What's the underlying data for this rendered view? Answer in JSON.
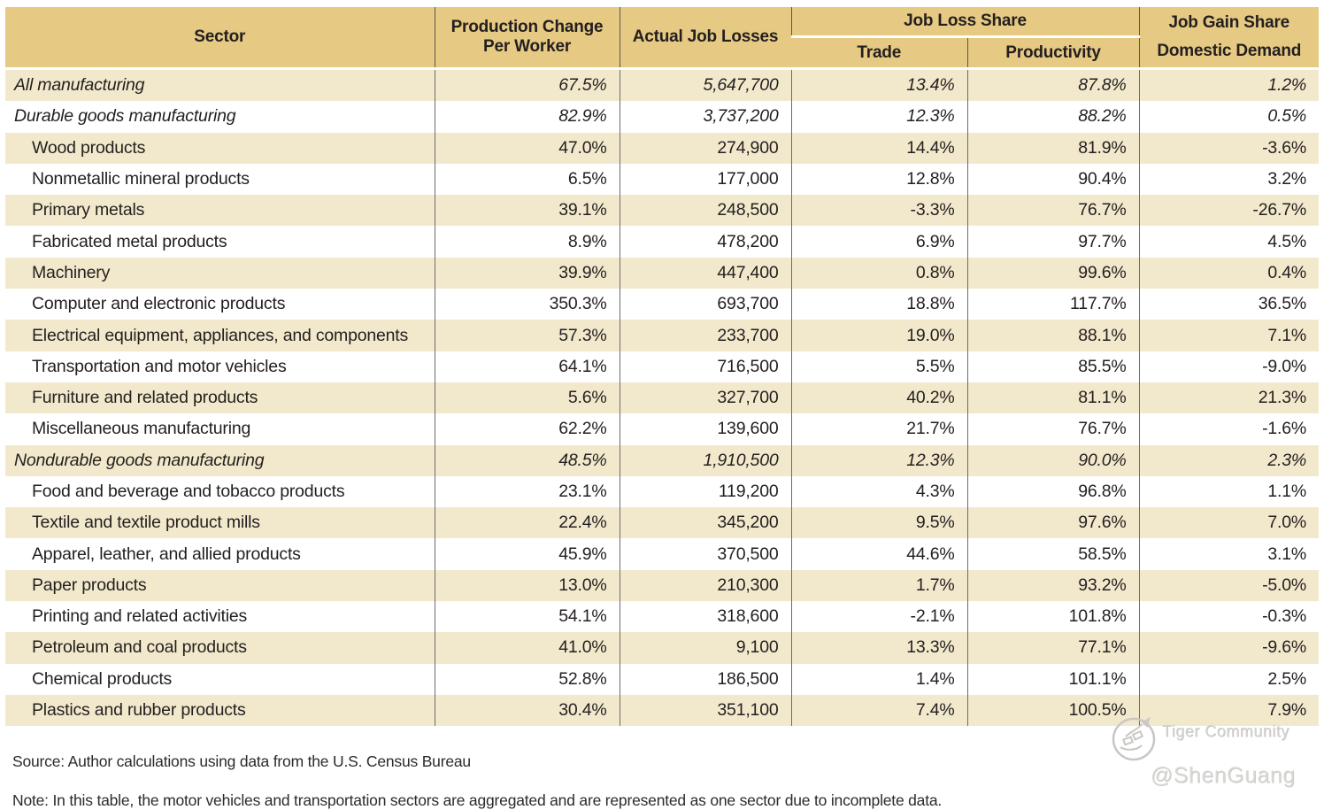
{
  "table": {
    "header": {
      "sector": "Sector",
      "production_line1": "Production Change",
      "production_line2": "Per Worker",
      "job_losses": "Actual Job Losses",
      "job_loss_share": "Job Loss Share",
      "trade": "Trade",
      "productivity": "Productivity",
      "job_gain_share": "Job Gain Share",
      "domestic_demand": "Domestic Demand"
    },
    "rows": [
      {
        "sector": "All manufacturing",
        "indent": false,
        "summary": true,
        "production_change": "67.5%",
        "job_losses": "5,647,700",
        "trade": "13.4%",
        "productivity": "87.8%",
        "domestic_demand": "1.2%"
      },
      {
        "sector": "Durable goods manufacturing",
        "indent": false,
        "summary": true,
        "production_change": "82.9%",
        "job_losses": "3,737,200",
        "trade": "12.3%",
        "productivity": "88.2%",
        "domestic_demand": "0.5%"
      },
      {
        "sector": "Wood products",
        "indent": true,
        "summary": false,
        "production_change": "47.0%",
        "job_losses": "274,900",
        "trade": "14.4%",
        "productivity": "81.9%",
        "domestic_demand": "-3.6%"
      },
      {
        "sector": "Nonmetallic mineral products",
        "indent": true,
        "summary": false,
        "production_change": "6.5%",
        "job_losses": "177,000",
        "trade": "12.8%",
        "productivity": "90.4%",
        "domestic_demand": "3.2%"
      },
      {
        "sector": "Primary metals",
        "indent": true,
        "summary": false,
        "production_change": "39.1%",
        "job_losses": "248,500",
        "trade": "-3.3%",
        "productivity": "76.7%",
        "domestic_demand": "-26.7%"
      },
      {
        "sector": "Fabricated metal products",
        "indent": true,
        "summary": false,
        "production_change": "8.9%",
        "job_losses": "478,200",
        "trade": "6.9%",
        "productivity": "97.7%",
        "domestic_demand": "4.5%"
      },
      {
        "sector": "Machinery",
        "indent": true,
        "summary": false,
        "production_change": "39.9%",
        "job_losses": "447,400",
        "trade": "0.8%",
        "productivity": "99.6%",
        "domestic_demand": "0.4%"
      },
      {
        "sector": "Computer and electronic products",
        "indent": true,
        "summary": false,
        "production_change": "350.3%",
        "job_losses": "693,700",
        "trade": "18.8%",
        "productivity": "117.7%",
        "domestic_demand": "36.5%"
      },
      {
        "sector": "Electrical equipment, appliances, and components",
        "indent": true,
        "summary": false,
        "production_change": "57.3%",
        "job_losses": "233,700",
        "trade": "19.0%",
        "productivity": "88.1%",
        "domestic_demand": "7.1%"
      },
      {
        "sector": "Transportation and motor vehicles",
        "indent": true,
        "summary": false,
        "production_change": "64.1%",
        "job_losses": "716,500",
        "trade": "5.5%",
        "productivity": "85.5%",
        "domestic_demand": "-9.0%"
      },
      {
        "sector": "Furniture and related products",
        "indent": true,
        "summary": false,
        "production_change": "5.6%",
        "job_losses": "327,700",
        "trade": "40.2%",
        "productivity": "81.1%",
        "domestic_demand": "21.3%"
      },
      {
        "sector": "Miscellaneous manufacturing",
        "indent": true,
        "summary": false,
        "production_change": "62.2%",
        "job_losses": "139,600",
        "trade": "21.7%",
        "productivity": "76.7%",
        "domestic_demand": "-1.6%"
      },
      {
        "sector": "Nondurable goods manufacturing",
        "indent": false,
        "summary": true,
        "production_change": "48.5%",
        "job_losses": "1,910,500",
        "trade": "12.3%",
        "productivity": "90.0%",
        "domestic_demand": "2.3%"
      },
      {
        "sector": "Food and beverage and tobacco products",
        "indent": true,
        "summary": false,
        "production_change": "23.1%",
        "job_losses": "119,200",
        "trade": "4.3%",
        "productivity": "96.8%",
        "domestic_demand": "1.1%"
      },
      {
        "sector": "Textile and textile product mills",
        "indent": true,
        "summary": false,
        "production_change": "22.4%",
        "job_losses": "345,200",
        "trade": "9.5%",
        "productivity": "97.6%",
        "domestic_demand": "7.0%"
      },
      {
        "sector": "Apparel, leather, and allied products",
        "indent": true,
        "summary": false,
        "production_change": "45.9%",
        "job_losses": "370,500",
        "trade": "44.6%",
        "productivity": "58.5%",
        "domestic_demand": "3.1%"
      },
      {
        "sector": "Paper products",
        "indent": true,
        "summary": false,
        "production_change": "13.0%",
        "job_losses": "210,300",
        "trade": "1.7%",
        "productivity": "93.2%",
        "domestic_demand": "-5.0%"
      },
      {
        "sector": "Printing and related activities",
        "indent": true,
        "summary": false,
        "production_change": "54.1%",
        "job_losses": "318,600",
        "trade": "-2.1%",
        "productivity": "101.8%",
        "domestic_demand": "-0.3%"
      },
      {
        "sector": "Petroleum and coal products",
        "indent": true,
        "summary": false,
        "production_change": "41.0%",
        "job_losses": "9,100",
        "trade": "13.3%",
        "productivity": "77.1%",
        "domestic_demand": "-9.6%"
      },
      {
        "sector": "Chemical products",
        "indent": true,
        "summary": false,
        "production_change": "52.8%",
        "job_losses": "186,500",
        "trade": "1.4%",
        "productivity": "101.1%",
        "domestic_demand": "2.5%"
      },
      {
        "sector": "Plastics and rubber products",
        "indent": true,
        "summary": false,
        "production_change": "30.4%",
        "job_losses": "351,100",
        "trade": "7.4%",
        "productivity": "100.5%",
        "domestic_demand": "7.9%"
      }
    ]
  },
  "footer": {
    "source": "Source: Author calculations using data from the U.S. Census Bureau",
    "note": "Note: In this table, the motor vehicles and transportation sectors are aggregated and are represented as one sector due to incomplete data."
  },
  "watermark": {
    "line1": "Tiger Community",
    "line2": "@ShenGuang"
  },
  "colors": {
    "header_bg": "#e6c982",
    "row_alt_bg": "#f2e9cc",
    "row_bg": "#ffffff",
    "divider": "#6b6c6e",
    "text": "#231f20",
    "watermark": "#cfcecc"
  }
}
